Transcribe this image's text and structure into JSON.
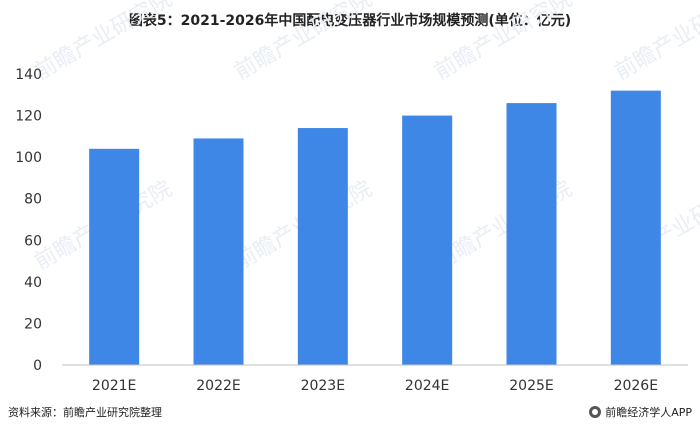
{
  "title": "图表5：2021-2026年中国配电变压器行业市场规模预测(单位：亿元)",
  "chart_data": {
    "type": "bar",
    "categories": [
      "2021E",
      "2022E",
      "2023E",
      "2024E",
      "2025E",
      "2026E"
    ],
    "values": [
      104,
      109,
      114,
      120,
      126,
      132
    ],
    "ylim": [
      0,
      140
    ],
    "yticks": [
      0,
      20,
      40,
      60,
      80,
      100,
      120,
      140
    ],
    "grid": false,
    "bar_color": "#3f87e6",
    "axis_color": "#bfbfbf"
  },
  "footer": {
    "source": "资料来源：前瞻产业研究院整理",
    "brand": "前瞻经济学人APP"
  },
  "watermark": "前瞻产业研究院"
}
